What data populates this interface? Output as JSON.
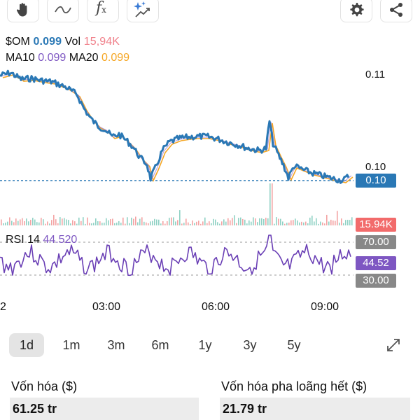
{
  "toolbar": {
    "icons": [
      "hand-icon",
      "wave-icon",
      "function-icon",
      "sparkle-chart-icon",
      "gear-icon",
      "share-icon"
    ],
    "function_glyph": "f",
    "function_sub": "x"
  },
  "legend": {
    "symbol": "$OM",
    "price": "0.099",
    "vol_label": "Vol",
    "vol_value": "15,94K",
    "ma10_label": "MA10",
    "ma10_value": "0.099",
    "ma20_label": "MA20",
    "ma20_value": "0.099"
  },
  "price_axis": {
    "top": "0.11",
    "mid": "0.10",
    "current_badge": "0.10",
    "volume_badge": "15.94K"
  },
  "rsi": {
    "label": "RSI 14",
    "value": "44.520",
    "upper": "70.00",
    "current_badge": "44.52",
    "lower": "30.00"
  },
  "time_axis": [
    "2",
    "03:00",
    "06:00",
    "09:00"
  ],
  "ranges": [
    {
      "label": "1d",
      "active": true
    },
    {
      "label": "1m",
      "active": false
    },
    {
      "label": "3m",
      "active": false
    },
    {
      "label": "6m",
      "active": false
    },
    {
      "label": "1y",
      "active": false
    },
    {
      "label": "3y",
      "active": false
    },
    {
      "label": "5y",
      "active": false
    }
  ],
  "stats": {
    "market_cap_label": "Vốn hóa ($)",
    "market_cap_value": "61.25 tr",
    "fdv_label": "Vốn hóa pha loãng hết ($)",
    "fdv_value": "21.79 tr"
  },
  "colors": {
    "price_line": "#2a78b5",
    "ma_line": "#f5a623",
    "rsi_line": "#6a3fb5",
    "badge_price": "#2a78b5",
    "badge_volume": "#f26b6b",
    "badge_rsi": "#7e57c2",
    "badge_grey": "#888888"
  }
}
